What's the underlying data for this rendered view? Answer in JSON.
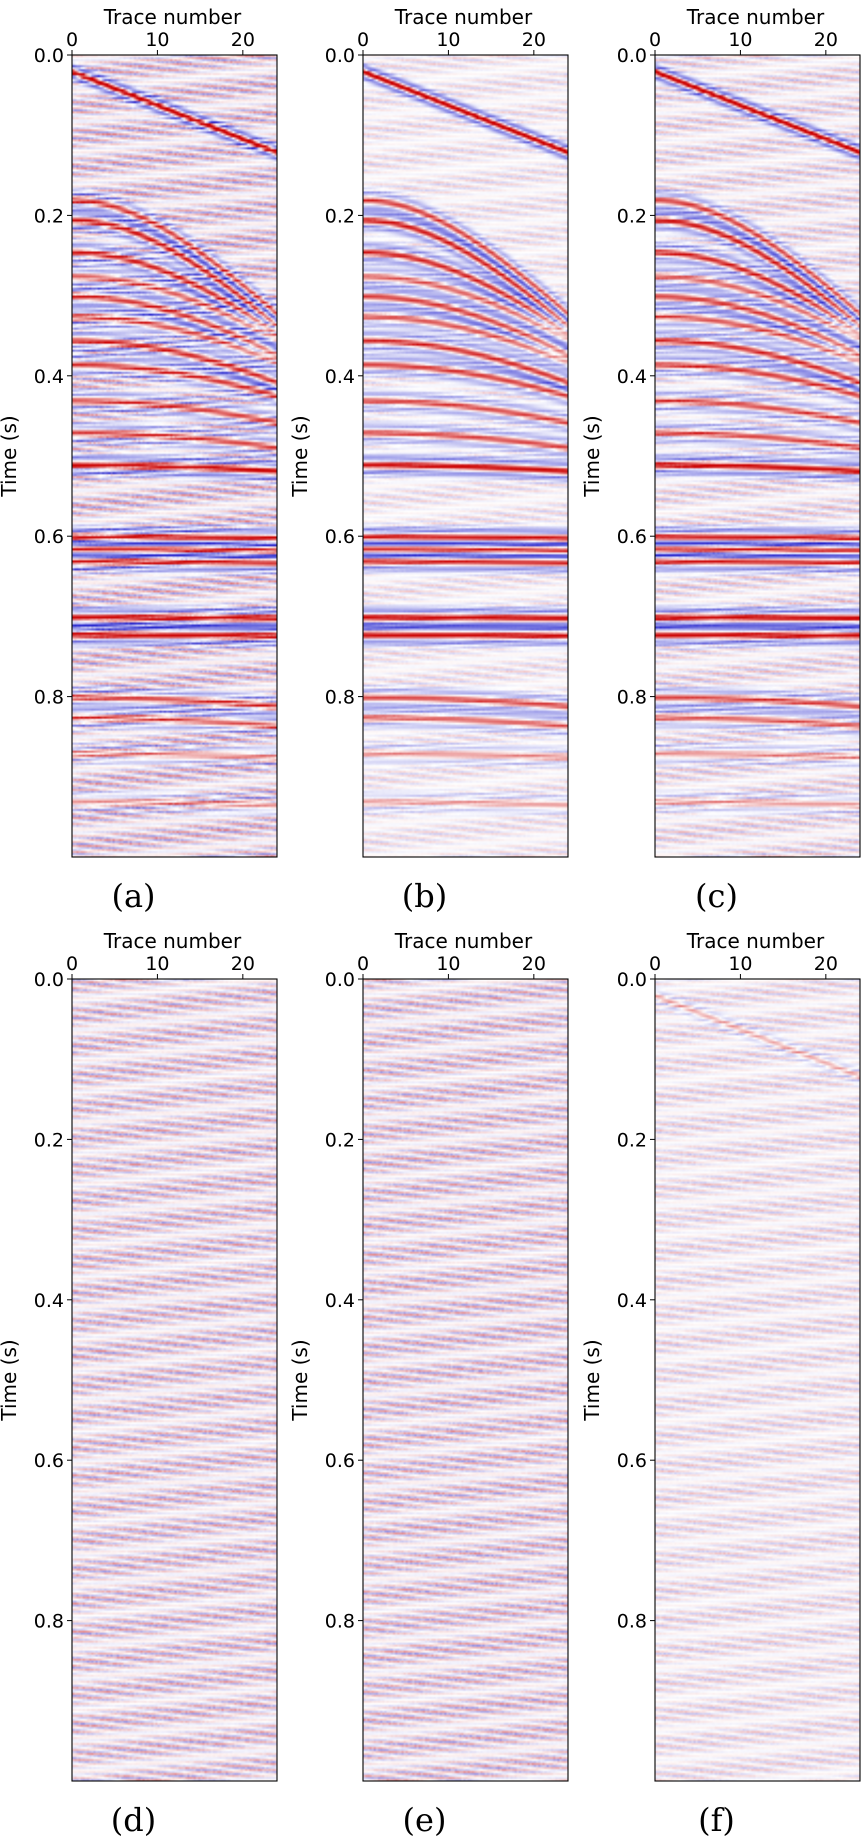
{
  "colors": {
    "positive": "#cc0000",
    "negative": "#1a1acc",
    "zero": "#ffffff"
  },
  "chart_data": [
    {
      "type": "heatmap",
      "caption": "(a)",
      "xlabel": "Trace number",
      "ylabel": "Time (s)",
      "xticks": [
        "0",
        "10",
        "20"
      ],
      "yticks": [
        "0.0",
        "0.2",
        "0.4",
        "0.6",
        "0.8"
      ],
      "xlim": [
        0,
        24
      ],
      "ylim": [
        0,
        1.0
      ],
      "noise_level": 0.55,
      "direct_wave": 1.0,
      "reflections": 1.0
    },
    {
      "type": "heatmap",
      "caption": "(b)",
      "xlabel": "Trace number",
      "ylabel": "Time (s)",
      "xticks": [
        "0",
        "10",
        "20"
      ],
      "yticks": [
        "0.0",
        "0.2",
        "0.4",
        "0.6",
        "0.8"
      ],
      "xlim": [
        0,
        24
      ],
      "ylim": [
        0,
        1.0
      ],
      "noise_level": 0.25,
      "direct_wave": 1.0,
      "reflections": 1.0
    },
    {
      "type": "heatmap",
      "caption": "(c)",
      "xlabel": "Trace number",
      "ylabel": "Time (s)",
      "xticks": [
        "0",
        "10",
        "20"
      ],
      "yticks": [
        "0.0",
        "0.2",
        "0.4",
        "0.6",
        "0.8"
      ],
      "xlim": [
        0,
        24
      ],
      "ylim": [
        0,
        1.0
      ],
      "noise_level": 0.35,
      "direct_wave": 1.0,
      "reflections": 1.0
    },
    {
      "type": "heatmap",
      "caption": "(d)",
      "xlabel": "Trace number",
      "ylabel": "Time (s)",
      "xticks": [
        "0",
        "10",
        "20"
      ],
      "yticks": [
        "0.0",
        "0.2",
        "0.4",
        "0.6",
        "0.8"
      ],
      "xlim": [
        0,
        24
      ],
      "ylim": [
        0,
        1.0
      ],
      "noise_level": 0.5,
      "direct_wave": 0.0,
      "reflections": 0.0
    },
    {
      "type": "heatmap",
      "caption": "(e)",
      "xlabel": "Trace number",
      "ylabel": "Time (s)",
      "xticks": [
        "0",
        "10",
        "20"
      ],
      "yticks": [
        "0.0",
        "0.2",
        "0.4",
        "0.6",
        "0.8"
      ],
      "xlim": [
        0,
        24
      ],
      "ylim": [
        0,
        1.0
      ],
      "noise_level": 0.5,
      "direct_wave": 0.0,
      "reflections": 0.0
    },
    {
      "type": "heatmap",
      "caption": "(f)",
      "xlabel": "Trace number",
      "ylabel": "Time (s)",
      "xticks": [
        "0",
        "10",
        "20"
      ],
      "yticks": [
        "0.0",
        "0.2",
        "0.4",
        "0.6",
        "0.8"
      ],
      "xlim": [
        0,
        24
      ],
      "ylim": [
        0,
        1.0
      ],
      "noise_level": 0.3,
      "direct_wave": 0.25,
      "reflections": 0.0
    }
  ]
}
